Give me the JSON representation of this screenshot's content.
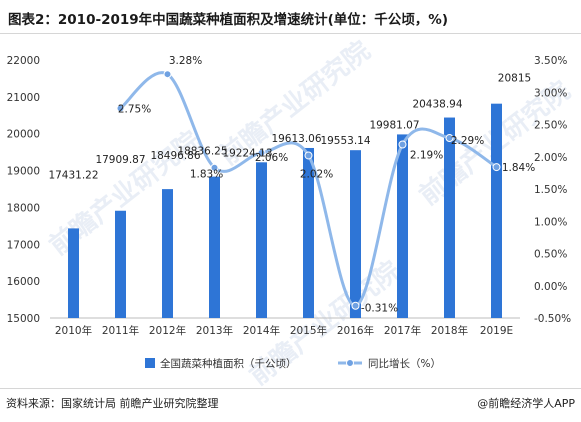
{
  "title": "图表2：2010-2019年中国蔬菜种植面积及增速统计(单位：千公顷，%)",
  "source": "资料来源：国家统计局 前瞻产业研究院整理",
  "brand": "@前瞻经济学人APP",
  "watermark": "前瞻产业研究院",
  "colors": {
    "bar": "#2e75d6",
    "line": "#8fb8ea",
    "marker": "#6fa1e2",
    "axis_text": "#333333"
  },
  "chart_data": {
    "type": "bar",
    "categories": [
      "2010年",
      "2011年",
      "2012年",
      "2013年",
      "2014年",
      "2015年",
      "2016年",
      "2017年",
      "2018年",
      "2019E"
    ],
    "series": [
      {
        "name": "全国蔬菜种植面积（千公顷）",
        "type": "bar",
        "axis": "left",
        "values": [
          17431.22,
          17909.87,
          18496.86,
          18836.25,
          19224.13,
          19613.06,
          19553.14,
          19981.07,
          20438.94,
          20815
        ],
        "labels": [
          "17431.22",
          "17909.87",
          "18496.86",
          "18836.25",
          "19224.13",
          "19613.06",
          "19553.14",
          "19981.07",
          "20438.94",
          "20815"
        ]
      },
      {
        "name": "同比增长（%）",
        "type": "line",
        "axis": "right",
        "smooth": true,
        "values": [
          null,
          2.75,
          3.28,
          1.83,
          2.06,
          2.02,
          -0.31,
          2.19,
          2.29,
          1.84
        ],
        "labels": [
          "",
          "2.75%",
          "3.28%",
          "1.83%",
          "2.06%",
          "2.02%",
          "-0.31%",
          "2.19%",
          "2.29%",
          "1.84%"
        ]
      }
    ],
    "y_left": {
      "min": 15000,
      "max": 22000,
      "step": 1000,
      "ticks": [
        "15000",
        "16000",
        "17000",
        "18000",
        "19000",
        "20000",
        "21000",
        "22000"
      ]
    },
    "y_right": {
      "min": -0.5,
      "max": 3.5,
      "step": 0.5,
      "ticks": [
        "-0.50%",
        "0.00%",
        "0.50%",
        "1.00%",
        "1.50%",
        "2.00%",
        "2.50%",
        "3.00%",
        "3.50%"
      ]
    },
    "grid": false,
    "legend_position": "bottom"
  }
}
